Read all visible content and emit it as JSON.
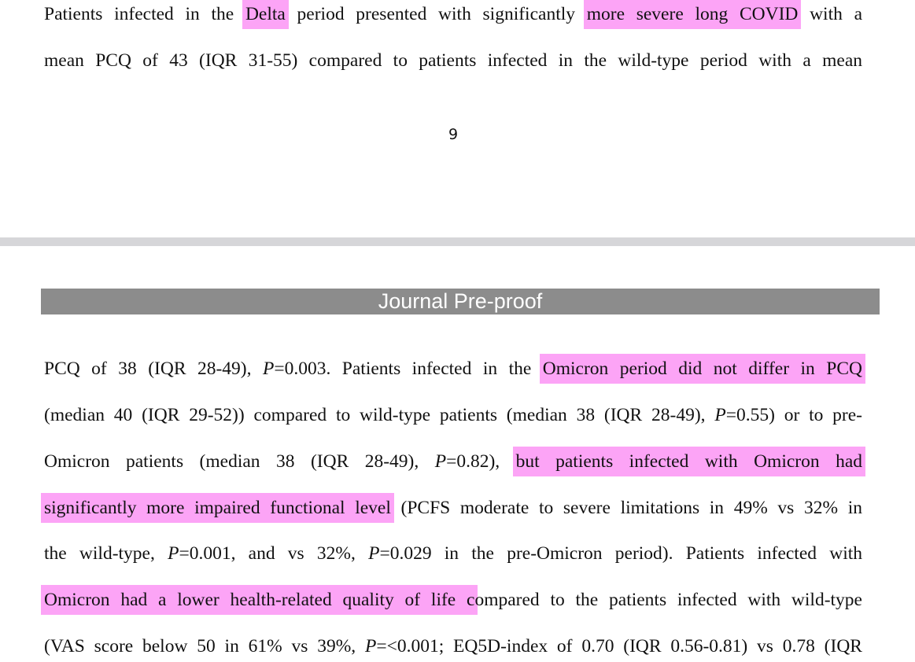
{
  "page_top": {
    "lines": [
      {
        "segments": [
          {
            "text": "Patients infected in the ",
            "highlight": false
          },
          {
            "text": "Delta",
            "highlight": true
          },
          {
            "text": " period presented with significantly ",
            "highlight": false
          },
          {
            "text": "more severe long COVID",
            "highlight": true
          },
          {
            "text": " with a",
            "highlight": false
          }
        ]
      },
      {
        "segments": [
          {
            "text": "mean PCQ of 43 (IQR 31-55) compared to patients infected in the wild-type period with a mean",
            "highlight": false
          }
        ]
      }
    ],
    "page_number": "9"
  },
  "page_bottom": {
    "banner": "Journal Pre-proof",
    "lines": [
      {
        "segments": [
          {
            "text": "PCQ of 38 (IQR 28-49), ",
            "highlight": false
          },
          {
            "text": "P",
            "highlight": false,
            "italic": true
          },
          {
            "text": "=0.003. Patients infected in the ",
            "highlight": false
          },
          {
            "text": "Omicron period did not differ in PCQ",
            "highlight": true
          }
        ]
      },
      {
        "segments": [
          {
            "text": "(median 40 (IQR 29-52)) compared to wild-type patients (median 38 (IQR 28-49), ",
            "highlight": false
          },
          {
            "text": "P",
            "highlight": false,
            "italic": true
          },
          {
            "text": "=0.55) or to pre-",
            "highlight": false
          }
        ]
      },
      {
        "segments": [
          {
            "text": "Omicron patients (median 38 (IQR 28-49), ",
            "highlight": false
          },
          {
            "text": "P",
            "highlight": false,
            "italic": true
          },
          {
            "text": "=0.82), ",
            "highlight": false
          },
          {
            "text": "but patients infected with Omicron had",
            "highlight": true
          }
        ]
      },
      {
        "segments": [
          {
            "text": "significantly more impaired functional level",
            "highlight": true
          },
          {
            "text": " (PCFS moderate to severe limitations in 49% vs 32% in",
            "highlight": false
          }
        ]
      },
      {
        "segments": [
          {
            "text": "the wild-type, ",
            "highlight": false
          },
          {
            "text": "P",
            "highlight": false,
            "italic": true
          },
          {
            "text": "=0.001, and vs 32%, ",
            "highlight": false
          },
          {
            "text": "P",
            "highlight": false,
            "italic": true
          },
          {
            "text": "=0.029 in the pre-Omicron period). Patients infected with",
            "highlight": false
          }
        ]
      },
      {
        "segments": [
          {
            "text": "Omicron had a lower health-related quality of life c",
            "highlight": true
          },
          {
            "text": "ompared to the patients infected with wild-type",
            "highlight": false
          }
        ]
      },
      {
        "segments": [
          {
            "text": "(VAS score below 50 in 61% vs 39%, ",
            "highlight": false
          },
          {
            "text": "P",
            "highlight": false,
            "italic": true
          },
          {
            "text": "=<0.001; EQ5D-index of 0.70 (IQR 0.56-0.81) vs 0.78 (IQR",
            "highlight": false
          }
        ]
      }
    ]
  },
  "colors": {
    "highlight": "#fca4f6",
    "banner_background": "#8c8c8c",
    "banner_text": "#ffffff",
    "page_gap": "#d6d6d9",
    "text": "#111111"
  }
}
